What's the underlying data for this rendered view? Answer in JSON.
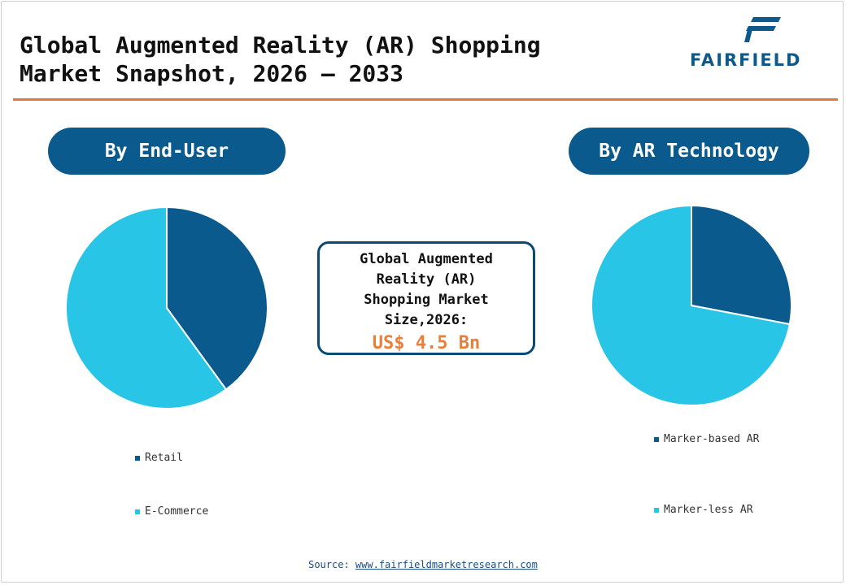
{
  "header": {
    "title_line1": "Global Augmented Reality (AR) Shopping",
    "title_line2": "Market Snapshot, 2026 – 2033",
    "logo_text": "FAIRFIELD"
  },
  "colors": {
    "primary": "#0a5a8e",
    "light": "#29c5e6",
    "accent": "#e07a3c",
    "value": "#e8803c"
  },
  "left_panel": {
    "heading": "By End-User"
  },
  "right_panel": {
    "heading": "By AR Technology"
  },
  "center": {
    "label_line1": "Global Augmented",
    "label_line2": "Reality (AR)",
    "label_line3": "Shopping Market",
    "label_line4": "Size,2026:",
    "value": "US$ 4.5 Bn"
  },
  "source": {
    "label": "Source:",
    "link": "www.fairfieldmarketresearch.com"
  },
  "chart_data": [
    {
      "type": "pie",
      "title": "By End-User",
      "categories": [
        "Retail",
        "E-Commerce"
      ],
      "values": [
        40,
        60
      ],
      "colors": [
        "#0a5a8e",
        "#29c5e6"
      ]
    },
    {
      "type": "pie",
      "title": "By AR Technology",
      "categories": [
        "Marker-based AR",
        "Marker-less AR"
      ],
      "values": [
        28,
        72
      ],
      "colors": [
        "#0a5a8e",
        "#29c5e6"
      ]
    }
  ]
}
